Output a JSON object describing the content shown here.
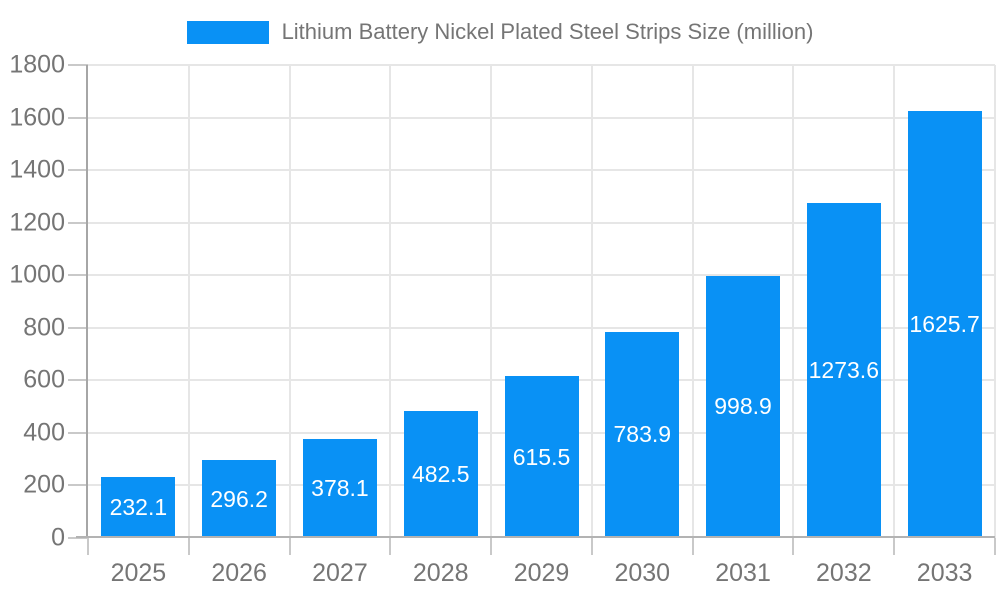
{
  "chart_data": {
    "type": "bar",
    "title": "Lithium Battery Nickel Plated Steel Strips Size (million)",
    "legend_entries": [
      "Lithium Battery Nickel Plated Steel Strips Size (million)"
    ],
    "legend_position": "top",
    "categories": [
      "2025",
      "2026",
      "2027",
      "2028",
      "2029",
      "2030",
      "2031",
      "2032",
      "2033"
    ],
    "values": [
      232.1,
      296.2,
      378.1,
      482.5,
      615.5,
      783.9,
      998.9,
      1273.6,
      1625.7
    ],
    "value_labels": [
      "232.1",
      "296.2",
      "378.1",
      "482.5",
      "615.5",
      "783.9",
      "998.9",
      "1273.6",
      "1625.7"
    ],
    "xlabel": "",
    "ylabel": "",
    "ylim": [
      0,
      1800
    ],
    "ytick_interval": 200,
    "ytick_labels": [
      "0",
      "200",
      "400",
      "600",
      "800",
      "1000",
      "1200",
      "1400",
      "1600",
      "1800"
    ],
    "grid": true,
    "colors": {
      "bar": "#0991f5",
      "value_label": "#ffffff",
      "axis_text": "#757575",
      "legend_text": "#757575",
      "gridline": "#e6e6e6",
      "tick": "#c9c9c9",
      "y_axis_line": "#a6a6a6",
      "x_axis_line": "#b3b3b3",
      "background": "#ffffff"
    }
  }
}
